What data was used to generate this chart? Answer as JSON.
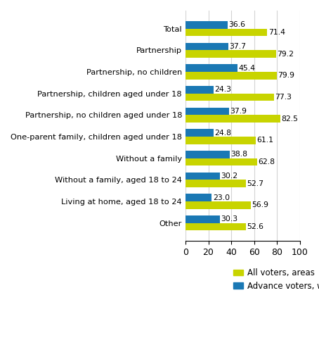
{
  "categories": [
    "Total",
    "Partnership",
    "Partnership, no children",
    "Partnership, children aged under 18",
    "Partnership, no children aged under 18",
    "One-parent family, children aged under 18",
    "Without a family",
    "Without a family, aged 18 to 24",
    "Living at home, aged 18 to 24",
    "Other"
  ],
  "all_voters": [
    71.4,
    79.2,
    79.9,
    77.3,
    82.5,
    61.1,
    62.8,
    52.7,
    56.9,
    52.6
  ],
  "advance_voters": [
    36.6,
    37.7,
    45.4,
    24.3,
    37.9,
    24.8,
    38.8,
    30.2,
    23.0,
    30.3
  ],
  "color_all": "#c8d400",
  "color_advance": "#1a78b4",
  "xlim": [
    0,
    100
  ],
  "xticks": [
    0,
    20,
    40,
    60,
    80,
    100
  ],
  "bar_height": 0.35,
  "legend_all": "All voters, areas",
  "legend_advance": "Advance voters, whole country",
  "fontsize_labels": 8.2,
  "fontsize_values": 7.8,
  "fontsize_ticks": 9,
  "fontsize_legend": 8.5
}
